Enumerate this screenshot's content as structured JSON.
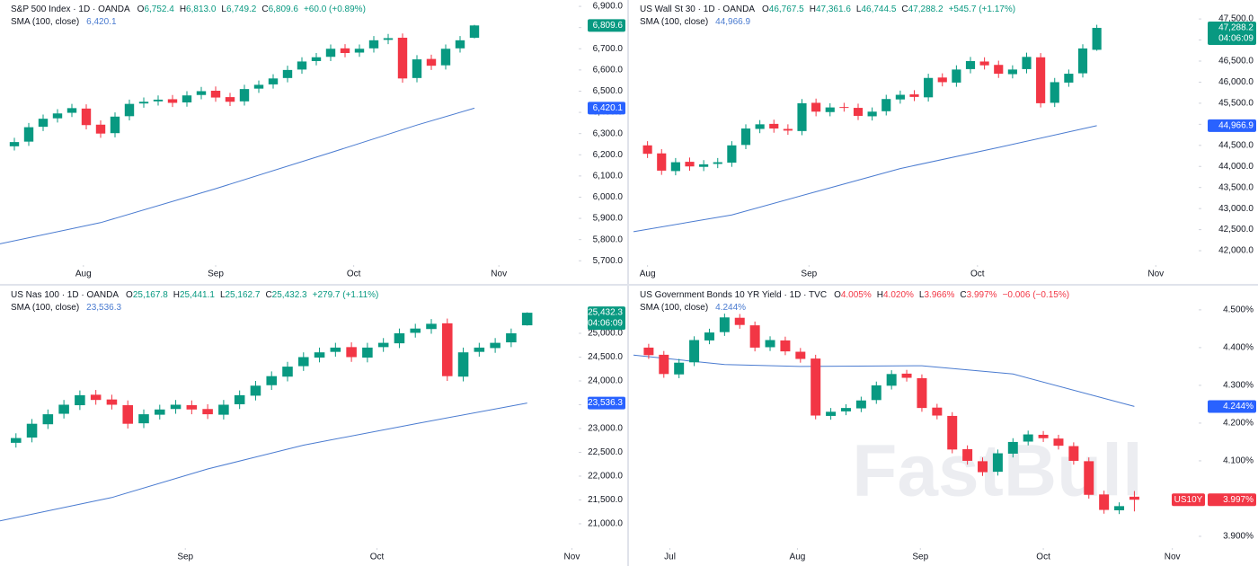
{
  "chart_data": [
    {
      "type": "candlestick",
      "title": "S&P 500 Index · 1D · OANDA",
      "ohlc": [
        {
          "key": "O",
          "value": "6,752.4"
        },
        {
          "key": "H",
          "value": "6,813.0"
        },
        {
          "key": "L",
          "value": "6,749.2"
        },
        {
          "key": "C",
          "value": "6,809.6"
        }
      ],
      "change": "+60.0 (+0.89%)",
      "sma_title": "SMA (100, close)",
      "sma_value": "6,420.1",
      "last_tag": "6,809.6",
      "up_color": "#089981",
      "down_color": "#f23645",
      "sma_color": "#4a7bd0",
      "tag_color": "#089981",
      "xlim": [
        -1,
        39
      ],
      "xticks": [
        {
          "value": 4.8,
          "label": "Aug"
        },
        {
          "value": 14,
          "label": "Sep"
        },
        {
          "value": 23.6,
          "label": "Oct"
        },
        {
          "value": 33.7,
          "label": "Nov"
        }
      ],
      "ylim": [
        5680,
        6930
      ],
      "yticks": [
        {
          "value": 5700,
          "label": "5,700.0"
        },
        {
          "value": 5800,
          "label": "5,800.0"
        },
        {
          "value": 5900,
          "label": "5,900.0"
        },
        {
          "value": 6000,
          "label": "6,000.0"
        },
        {
          "value": 6100,
          "label": "6,100.0"
        },
        {
          "value": 6200,
          "label": "6,200.0"
        },
        {
          "value": 6300,
          "label": "6,300.0"
        },
        {
          "value": 6400,
          "label": "6,400.0"
        },
        {
          "value": 6500,
          "label": "6,500.0"
        },
        {
          "value": 6600,
          "label": "6,600.0"
        },
        {
          "value": 6700,
          "label": "6,700.0"
        },
        {
          "value": 6800,
          "label": "6,800.0"
        },
        {
          "value": 6900,
          "label": "6,900.0"
        }
      ],
      "open": [
        6240,
        6262,
        6332,
        6372,
        6398,
        6418,
        6342,
        6302,
        6382,
        6442,
        6452,
        6462,
        6447,
        6482,
        6502,
        6472,
        6452,
        6512,
        6532,
        6562,
        6602,
        6642,
        6662,
        6702,
        6682,
        6702,
        6742,
        6752,
        6562,
        6652,
        6622,
        6702,
        6752
      ],
      "high": [
        6280,
        6350,
        6390,
        6415,
        6440,
        6438,
        6362,
        6400,
        6460,
        6470,
        6480,
        6482,
        6500,
        6520,
        6522,
        6492,
        6530,
        6550,
        6580,
        6620,
        6660,
        6680,
        6720,
        6722,
        6720,
        6760,
        6770,
        6772,
        6670,
        6672,
        6720,
        6760,
        6813
      ],
      "low": [
        6220,
        6242,
        6312,
        6352,
        6378,
        6320,
        6280,
        6282,
        6362,
        6422,
        6432,
        6425,
        6427,
        6462,
        6450,
        6430,
        6432,
        6492,
        6512,
        6542,
        6582,
        6622,
        6642,
        6660,
        6662,
        6682,
        6722,
        6540,
        6542,
        6600,
        6602,
        6682,
        6749
      ],
      "close": [
        6260,
        6330,
        6370,
        6395,
        6420,
        6340,
        6300,
        6380,
        6440,
        6450,
        6460,
        6445,
        6480,
        6500,
        6470,
        6450,
        6510,
        6530,
        6560,
        6600,
        6640,
        6660,
        6700,
        6680,
        6700,
        6740,
        6750,
        6560,
        6650,
        6620,
        6700,
        6740,
        6810
      ],
      "sma": {
        "x": [
          -1,
          6,
          14,
          22,
          28,
          32
        ],
        "values": [
          5780,
          5880,
          6040,
          6210,
          6340,
          6420
        ]
      }
    },
    {
      "type": "candlestick",
      "title": "US Wall St 30 · 1D · OANDA",
      "ohlc": [
        {
          "key": "O",
          "value": "46,767.5"
        },
        {
          "key": "H",
          "value": "47,361.6"
        },
        {
          "key": "L",
          "value": "46,744.5"
        },
        {
          "key": "C",
          "value": "47,288.2"
        }
      ],
      "change": "+545.7 (+1.17%)",
      "sma_title": "SMA (100, close)",
      "sma_value": "44,966.9",
      "last_tag": "47,288.2",
      "timer": "04:06:09",
      "up_color": "#089981",
      "down_color": "#f23645",
      "sma_color": "#4a7bd0",
      "tag_color": "#089981",
      "xlim": [
        -1,
        39
      ],
      "xticks": [
        {
          "value": 0,
          "label": "Aug"
        },
        {
          "value": 11.5,
          "label": "Sep"
        },
        {
          "value": 23.5,
          "label": "Oct"
        },
        {
          "value": 36.2,
          "label": "Nov"
        }
      ],
      "ylim": [
        41660,
        47950
      ],
      "yticks": [
        {
          "value": 42000,
          "label": "42,000.0"
        },
        {
          "value": 42500,
          "label": "42,500.0"
        },
        {
          "value": 43000,
          "label": "43,000.0"
        },
        {
          "value": 43500,
          "label": "43,500.0"
        },
        {
          "value": 44000,
          "label": "44,000.0"
        },
        {
          "value": 44500,
          "label": "44,500.0"
        },
        {
          "value": 45000,
          "label": "45,000.0"
        },
        {
          "value": 45500,
          "label": "45,500.0"
        },
        {
          "value": 46000,
          "label": "46,000.0"
        },
        {
          "value": 46500,
          "label": "46,500.0"
        },
        {
          "value": 47000,
          "label": "47,000.0"
        },
        {
          "value": 47500,
          "label": "47,500.0"
        }
      ],
      "open": [
        44500,
        44310,
        43890,
        44110,
        43990,
        44060,
        44090,
        44510,
        44890,
        45010,
        44890,
        44840,
        45510,
        45290,
        45410,
        45390,
        45190,
        45310,
        45590,
        45710,
        45640,
        46110,
        45990,
        46310,
        46490,
        46410,
        46190,
        46310,
        46590,
        45510,
        45990,
        46210,
        46768
      ],
      "high": [
        44600,
        44410,
        44200,
        44210,
        44150,
        44200,
        44600,
        45000,
        45100,
        45110,
        45000,
        45600,
        45610,
        45500,
        45510,
        45490,
        45400,
        45700,
        45800,
        45810,
        46200,
        46210,
        46400,
        46600,
        46590,
        46510,
        46400,
        46700,
        46690,
        46100,
        46300,
        46900,
        47362
      ],
      "low": [
        44200,
        43800,
        43790,
        43900,
        43890,
        43960,
        43990,
        44410,
        44790,
        44800,
        44750,
        44740,
        45190,
        45190,
        45300,
        45100,
        45090,
        45210,
        45490,
        45550,
        45540,
        45900,
        45890,
        46210,
        46300,
        46100,
        46090,
        46210,
        45400,
        45410,
        45890,
        46110,
        46745
      ],
      "close": [
        44300,
        43900,
        44100,
        44000,
        44050,
        44100,
        44500,
        44900,
        45000,
        44900,
        44850,
        45500,
        45300,
        45400,
        45400,
        45200,
        45300,
        45600,
        45700,
        45650,
        46100,
        46000,
        46300,
        46500,
        46400,
        46200,
        46300,
        46600,
        45500,
        46000,
        46200,
        46800,
        47288
      ],
      "sma": {
        "x": [
          -1,
          6,
          12,
          18,
          25,
          32
        ],
        "values": [
          42450,
          42850,
          43400,
          43950,
          44450,
          44967
        ]
      }
    },
    {
      "type": "candlestick",
      "title": "US Nas 100 · 1D · OANDA",
      "ohlc": [
        {
          "key": "O",
          "value": "25,167.8"
        },
        {
          "key": "H",
          "value": "25,441.1"
        },
        {
          "key": "L",
          "value": "25,162.7"
        },
        {
          "key": "C",
          "value": "25,432.3"
        }
      ],
      "change": "+279.7 (+1.11%)",
      "sma_title": "SMA (100, close)",
      "sma_value": "23,536.3",
      "last_tag": "25,432.3",
      "timer": "04:06:09",
      "up_color": "#089981",
      "down_color": "#f23645",
      "sma_color": "#4a7bd0",
      "tag_color": "#089981",
      "xlim": [
        -1,
        35
      ],
      "xticks": [
        {
          "value": 10.6,
          "label": "Sep"
        },
        {
          "value": 22.6,
          "label": "Oct"
        },
        {
          "value": 34.8,
          "label": "Nov"
        }
      ],
      "ylim": [
        20490,
        26000
      ],
      "yticks": [
        {
          "value": 21000,
          "label": "21,000.0"
        },
        {
          "value": 21500,
          "label": "21,500.0"
        },
        {
          "value": 22000,
          "label": "22,000.0"
        },
        {
          "value": 22500,
          "label": "22,500.0"
        },
        {
          "value": 23000,
          "label": "23,000.0"
        },
        {
          "value": 23500,
          "label": "23,500.0"
        },
        {
          "value": 24000,
          "label": "24,000.0"
        },
        {
          "value": 24500,
          "label": "24,500.0"
        },
        {
          "value": 25000,
          "label": "25,000.0"
        }
      ],
      "open": [
        22700,
        22810,
        23090,
        23310,
        23490,
        23710,
        23610,
        23490,
        23110,
        23290,
        23410,
        23490,
        23410,
        23290,
        23510,
        23690,
        23910,
        24090,
        24310,
        24490,
        24610,
        24710,
        24490,
        24710,
        24790,
        25010,
        25090,
        25210,
        24090,
        24610,
        24690,
        24810,
        25168
      ],
      "high": [
        22900,
        23200,
        23400,
        23600,
        23800,
        23810,
        23710,
        23590,
        23400,
        23500,
        23600,
        23590,
        23510,
        23600,
        23800,
        24000,
        24200,
        24400,
        24600,
        24700,
        24800,
        24810,
        24800,
        24900,
        25100,
        25200,
        25300,
        25310,
        24700,
        24800,
        24900,
        25100,
        25441
      ],
      "low": [
        22600,
        22710,
        22990,
        23210,
        23390,
        23500,
        23400,
        23000,
        23010,
        23190,
        23310,
        23300,
        23200,
        23190,
        23410,
        23590,
        23810,
        23990,
        24210,
        24390,
        24510,
        24400,
        24390,
        24610,
        24690,
        24910,
        24990,
        24000,
        23990,
        24510,
        24590,
        24710,
        25163
      ],
      "close": [
        22800,
        23100,
        23300,
        23500,
        23700,
        23600,
        23500,
        23100,
        23300,
        23400,
        23500,
        23400,
        23300,
        23500,
        23700,
        23900,
        24100,
        24300,
        24500,
        24600,
        24700,
        24500,
        24700,
        24800,
        25000,
        25100,
        25200,
        24100,
        24600,
        24700,
        24800,
        25000,
        25432
      ],
      "sma": {
        "x": [
          -1,
          6,
          12,
          18,
          25,
          32
        ],
        "values": [
          21060,
          21550,
          22150,
          22650,
          23100,
          23536
        ]
      }
    },
    {
      "type": "candlestick",
      "title": "US Government Bonds 10 YR Yield · 1D · TVC",
      "ohlc": [
        {
          "key": "O",
          "value": "4.005%"
        },
        {
          "key": "H",
          "value": "4.020%"
        },
        {
          "key": "L",
          "value": "3.966%"
        },
        {
          "key": "C",
          "value": "3.997%"
        }
      ],
      "change": "−0.006 (−0.15%)",
      "sma_title": "SMA (100, close)",
      "sma_value": "4.244%",
      "last_tag": "3.997%",
      "symbol_tag": "US10Y",
      "up_color": "#089981",
      "down_color": "#f23645",
      "sma_color": "#4a7bd0",
      "tag_color": "#f23645",
      "xlim": [
        -1,
        36
      ],
      "xticks": [
        {
          "value": 1.4,
          "label": "Jul"
        },
        {
          "value": 9.8,
          "label": "Aug"
        },
        {
          "value": 17.9,
          "label": "Sep"
        },
        {
          "value": 26,
          "label": "Oct"
        },
        {
          "value": 34.5,
          "label": "Nov"
        }
      ],
      "ylim": [
        3.869,
        4.564
      ],
      "yticks": [
        {
          "value": 3.9,
          "label": "3.900%"
        },
        {
          "value": 4.0,
          "label": "4.000%"
        },
        {
          "value": 4.1,
          "label": "4.100%"
        },
        {
          "value": 4.2,
          "label": "4.200%"
        },
        {
          "value": 4.3,
          "label": "4.300%"
        },
        {
          "value": 4.4,
          "label": "4.400%"
        },
        {
          "value": 4.5,
          "label": "4.500%"
        }
      ],
      "open": [
        4.4,
        4.381,
        4.329,
        4.361,
        4.419,
        4.441,
        4.479,
        4.459,
        4.401,
        4.419,
        4.389,
        4.371,
        4.219,
        4.231,
        4.239,
        4.261,
        4.299,
        4.331,
        4.319,
        4.241,
        4.219,
        4.131,
        4.099,
        4.071,
        4.119,
        4.151,
        4.169,
        4.159,
        4.139,
        4.099,
        4.011,
        3.969,
        4.005
      ],
      "high": [
        4.41,
        4.391,
        4.37,
        4.43,
        4.45,
        4.49,
        4.489,
        4.469,
        4.43,
        4.429,
        4.399,
        4.381,
        4.24,
        4.25,
        4.27,
        4.31,
        4.34,
        4.341,
        4.329,
        4.251,
        4.229,
        4.141,
        4.109,
        4.13,
        4.16,
        4.18,
        4.179,
        4.169,
        4.149,
        4.109,
        4.021,
        3.99,
        4.02
      ],
      "low": [
        4.37,
        4.32,
        4.319,
        4.351,
        4.409,
        4.431,
        4.45,
        4.39,
        4.391,
        4.38,
        4.36,
        4.21,
        4.209,
        4.221,
        4.229,
        4.251,
        4.289,
        4.31,
        4.23,
        4.21,
        4.12,
        4.09,
        4.06,
        4.061,
        4.109,
        4.141,
        4.15,
        4.13,
        4.09,
        4.0,
        3.96,
        3.959,
        3.966
      ],
      "close": [
        4.38,
        4.33,
        4.36,
        4.42,
        4.44,
        4.48,
        4.46,
        4.4,
        4.42,
        4.39,
        4.37,
        4.22,
        4.23,
        4.24,
        4.26,
        4.3,
        4.33,
        4.32,
        4.24,
        4.22,
        4.13,
        4.1,
        4.07,
        4.12,
        4.15,
        4.17,
        4.16,
        4.14,
        4.1,
        4.01,
        3.97,
        3.98,
        3.997
      ],
      "sma": {
        "x": [
          -1,
          5,
          10,
          18,
          24,
          32
        ],
        "values": [
          4.38,
          4.355,
          4.35,
          4.352,
          4.33,
          4.244
        ]
      }
    }
  ],
  "watermark": "FastBull"
}
